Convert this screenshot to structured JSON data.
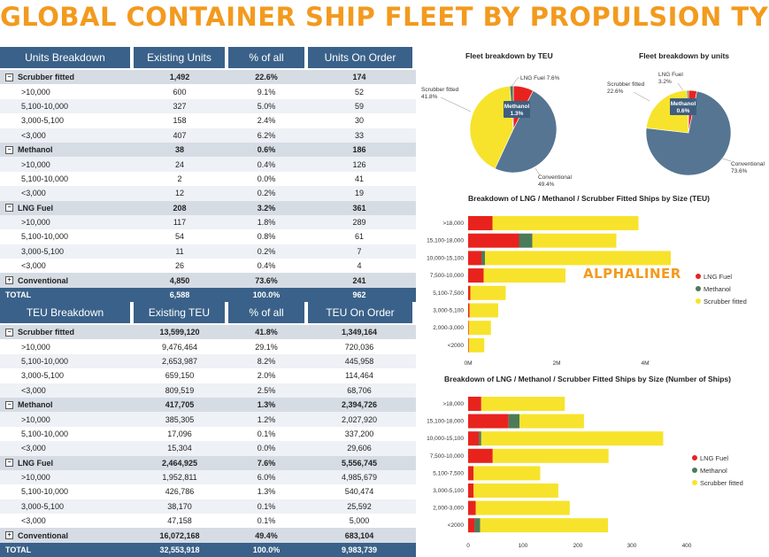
{
  "title": "GLOBAL CONTAINER SHIP FLEET BY PROPULSION TYPE",
  "colors": {
    "lng": "#E8231E",
    "methanol": "#4C7B5A",
    "scrubber": "#F7E32C",
    "conventional": "#557592",
    "header": "#3A6189",
    "accent": "#F39A1E"
  },
  "units_table": {
    "headers": [
      "Units Breakdown",
      "Existing Units",
      "% of all",
      "Units On Order"
    ],
    "rows": [
      {
        "kind": "grp",
        "toggle": "⊟",
        "cells": [
          "Scrubber fitted",
          "1,492",
          "22.6%",
          "174"
        ]
      },
      {
        "kind": "sub",
        "cells": [
          ">10,000",
          "600",
          "9.1%",
          "52"
        ]
      },
      {
        "kind": "sub",
        "cells": [
          "5,100-10,000",
          "327",
          "5.0%",
          "59"
        ]
      },
      {
        "kind": "sub",
        "cells": [
          "3,000-5,100",
          "158",
          "2.4%",
          "30"
        ]
      },
      {
        "kind": "sub",
        "cells": [
          "<3,000",
          "407",
          "6.2%",
          "33"
        ]
      },
      {
        "kind": "grp",
        "toggle": "⊟",
        "cells": [
          "Methanol",
          "38",
          "0.6%",
          "186"
        ]
      },
      {
        "kind": "sub",
        "cells": [
          ">10,000",
          "24",
          "0.4%",
          "126"
        ]
      },
      {
        "kind": "sub",
        "cells": [
          "5,100-10,000",
          "2",
          "0.0%",
          "41"
        ]
      },
      {
        "kind": "sub",
        "cells": [
          "<3,000",
          "12",
          "0.2%",
          "19"
        ]
      },
      {
        "kind": "grp",
        "toggle": "⊟",
        "cells": [
          "LNG Fuel",
          "208",
          "3.2%",
          "361"
        ]
      },
      {
        "kind": "sub",
        "cells": [
          ">10,000",
          "117",
          "1.8%",
          "289"
        ]
      },
      {
        "kind": "sub",
        "cells": [
          "5,100-10,000",
          "54",
          "0.8%",
          "61"
        ]
      },
      {
        "kind": "sub",
        "cells": [
          "3,000-5,100",
          "11",
          "0.2%",
          "7"
        ]
      },
      {
        "kind": "sub",
        "cells": [
          "<3,000",
          "26",
          "0.4%",
          "4"
        ]
      },
      {
        "kind": "grp",
        "toggle": "⊞",
        "cells": [
          "Conventional",
          "4,850",
          "73.6%",
          "241"
        ]
      },
      {
        "kind": "tot",
        "cells": [
          "TOTAL",
          "6,588",
          "100.0%",
          "962"
        ]
      }
    ]
  },
  "teu_table": {
    "headers": [
      "TEU Breakdown",
      "Existing TEU",
      "% of all",
      "TEU On Order"
    ],
    "rows": [
      {
        "kind": "grp",
        "toggle": "⊟",
        "cells": [
          "Scrubber fitted",
          "13,599,120",
          "41.8%",
          "1,349,164"
        ]
      },
      {
        "kind": "sub",
        "cells": [
          ">10,000",
          "9,476,464",
          "29.1%",
          "720,036"
        ]
      },
      {
        "kind": "sub",
        "cells": [
          "5,100-10,000",
          "2,653,987",
          "8.2%",
          "445,958"
        ]
      },
      {
        "kind": "sub",
        "cells": [
          "3,000-5,100",
          "659,150",
          "2.0%",
          "114,464"
        ]
      },
      {
        "kind": "sub",
        "cells": [
          "<3,000",
          "809,519",
          "2.5%",
          "68,706"
        ]
      },
      {
        "kind": "grp",
        "toggle": "⊟",
        "cells": [
          "Methanol",
          "417,705",
          "1.3%",
          "2,394,726"
        ]
      },
      {
        "kind": "sub",
        "cells": [
          ">10,000",
          "385,305",
          "1.2%",
          "2,027,920"
        ]
      },
      {
        "kind": "sub",
        "cells": [
          "5,100-10,000",
          "17,096",
          "0.1%",
          "337,200"
        ]
      },
      {
        "kind": "sub",
        "cells": [
          "<3,000",
          "15,304",
          "0.0%",
          "29,606"
        ]
      },
      {
        "kind": "grp",
        "toggle": "⊟",
        "cells": [
          "LNG Fuel",
          "2,464,925",
          "7.6%",
          "5,556,745"
        ]
      },
      {
        "kind": "sub",
        "cells": [
          ">10,000",
          "1,952,811",
          "6.0%",
          "4,985,679"
        ]
      },
      {
        "kind": "sub",
        "cells": [
          "5,100-10,000",
          "426,786",
          "1.3%",
          "540,474"
        ]
      },
      {
        "kind": "sub",
        "cells": [
          "3,000-5,100",
          "38,170",
          "0.1%",
          "25,592"
        ]
      },
      {
        "kind": "sub",
        "cells": [
          "<3,000",
          "47,158",
          "0.1%",
          "5,000"
        ]
      },
      {
        "kind": "grp",
        "toggle": "⊞",
        "cells": [
          "Conventional",
          "16,072,168",
          "49.4%",
          "683,104"
        ]
      },
      {
        "kind": "tot",
        "cells": [
          "TOTAL",
          "32,553,918",
          "100.0%",
          "9,983,739"
        ]
      }
    ]
  },
  "brand": "ALPHALINER",
  "chart_data": [
    {
      "type": "pie",
      "title": "Fleet breakdown by TEU",
      "slices": [
        {
          "name": "LNG Fuel",
          "value": 7.6,
          "label": "LNG Fuel 7.6%"
        },
        {
          "name": "Conventional",
          "value": 49.4,
          "label": "Conventional 49.4%"
        },
        {
          "name": "Scrubber fitted",
          "value": 41.8,
          "label": "Scrubber fitted 41.8%"
        },
        {
          "name": "Methanol",
          "value": 1.3,
          "label": "Methanol 1.3%"
        }
      ]
    },
    {
      "type": "pie",
      "title": "Fleet breakdown by units",
      "slices": [
        {
          "name": "LNG Fuel",
          "value": 3.2,
          "label": "LNG Fuel 3.2%"
        },
        {
          "name": "Conventional",
          "value": 73.6,
          "label": "Conventional 73.6%"
        },
        {
          "name": "Scrubber fitted",
          "value": 22.6,
          "label": "Scrubber fitted 22.6%"
        },
        {
          "name": "Methanol",
          "value": 0.6,
          "label": "Methanol 0.6%"
        }
      ]
    },
    {
      "type": "bar",
      "orientation": "horizontal-stacked",
      "title": "Breakdown of LNG / Methanol / Scrubber Fitted Ships by Size (TEU)",
      "categories": [
        ">18,000",
        "15,100-18,000",
        "10,000-15,100",
        "7,500-10,000",
        "5,100-7,500",
        "3,000-5,100",
        "2,000-3,000",
        "<2000"
      ],
      "series": [
        {
          "name": "LNG Fuel",
          "values": [
            550000,
            1150000,
            300000,
            350000,
            50000,
            30000,
            15000,
            15000
          ]
        },
        {
          "name": "Methanol",
          "values": [
            0,
            300000,
            80000,
            0,
            0,
            0,
            0,
            0
          ]
        },
        {
          "name": "Scrubber fitted",
          "values": [
            3300000,
            1900000,
            4200000,
            1850000,
            800000,
            650000,
            500000,
            350000
          ]
        }
      ],
      "xticks": [
        "0M",
        "2M",
        "4M"
      ],
      "xlim": [
        0,
        4500000
      ]
    },
    {
      "type": "bar",
      "orientation": "horizontal-stacked",
      "title": "Breakdown of LNG / Methanol / Scrubber Fitted Ships by Size (Number of Ships)",
      "categories": [
        ">18,000",
        "15,100-18,000",
        "10,000-15,100",
        "7,500-10,000",
        "5,100-7,500",
        "3,000-5,100",
        "2,000-3,000",
        "<2000"
      ],
      "series": [
        {
          "name": "LNG Fuel",
          "values": [
            24,
            74,
            20,
            45,
            10,
            10,
            14,
            12
          ]
        },
        {
          "name": "Methanol",
          "values": [
            0,
            20,
            4,
            0,
            0,
            0,
            0,
            10
          ]
        },
        {
          "name": "Scrubber fitted",
          "values": [
            153,
            118,
            333,
            212,
            122,
            155,
            172,
            234
          ]
        }
      ],
      "xticks": [
        "0",
        "100",
        "200",
        "300",
        "400"
      ],
      "xlim": [
        0,
        400
      ]
    }
  ],
  "legend": [
    "LNG Fuel",
    "Methanol",
    "Scrubber fitted"
  ]
}
